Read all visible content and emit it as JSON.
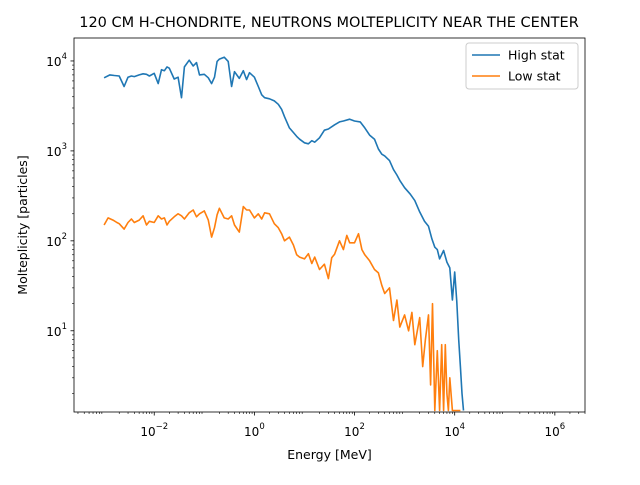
{
  "chart_data": {
    "type": "line",
    "title": "120 CM H-CHONDRITE, NEUTRONS MOLTEPLICITY NEAR THE CENTER",
    "xlabel": "Energy [MeV]",
    "ylabel": "Molteplicity [particles]",
    "xscale": "log",
    "yscale": "log",
    "xlim": [
      0.00025,
      4000000
    ],
    "ylim": [
      1.25,
      18000
    ],
    "x_ticks": [
      {
        "value": 0.01,
        "base": "10",
        "exp": "−2"
      },
      {
        "value": 1,
        "base": "10",
        "exp": "0"
      },
      {
        "value": 100,
        "base": "10",
        "exp": "2"
      },
      {
        "value": 10000,
        "base": "10",
        "exp": "4"
      },
      {
        "value": 1000000,
        "base": "10",
        "exp": "6"
      }
    ],
    "y_ticks": [
      {
        "value": 10,
        "base": "10",
        "exp": "1"
      },
      {
        "value": 100,
        "base": "10",
        "exp": "2"
      },
      {
        "value": 1000,
        "base": "10",
        "exp": "3"
      },
      {
        "value": 10000,
        "base": "10",
        "exp": "4"
      }
    ],
    "grid": false,
    "legend_position": "top-right",
    "series": [
      {
        "name": "High stat",
        "color": "#1f77b4",
        "x": [
          0.001,
          0.0013,
          0.0016,
          0.002,
          0.0025,
          0.003,
          0.0035,
          0.004,
          0.005,
          0.006,
          0.007,
          0.008,
          0.01,
          0.012,
          0.014,
          0.016,
          0.018,
          0.02,
          0.025,
          0.03,
          0.035,
          0.04,
          0.05,
          0.06,
          0.07,
          0.08,
          0.1,
          0.12,
          0.14,
          0.16,
          0.18,
          0.2,
          0.25,
          0.3,
          0.35,
          0.4,
          0.5,
          0.6,
          0.7,
          0.8,
          1.0,
          1.2,
          1.4,
          1.6,
          2.0,
          2.5,
          3,
          3.5,
          4,
          5,
          6,
          7,
          8,
          10,
          12,
          14,
          16,
          20,
          25,
          30,
          40,
          50,
          60,
          80,
          100,
          130,
          160,
          200,
          250,
          300,
          350,
          400,
          500,
          600,
          700,
          800,
          1000,
          1300,
          1600,
          2000,
          2500,
          3000,
          3500,
          4000,
          4500,
          5000,
          6000,
          7000,
          8000,
          9000,
          10000,
          11000,
          12000,
          13000,
          14000,
          15000
        ],
        "y": [
          6500,
          7000,
          6900,
          6800,
          5200,
          6600,
          6800,
          6700,
          7000,
          7200,
          7100,
          6800,
          7300,
          5600,
          8000,
          7800,
          8600,
          8300,
          6300,
          6600,
          3900,
          8600,
          10200,
          8800,
          9600,
          7000,
          7100,
          6500,
          5600,
          6600,
          9900,
          10500,
          11000,
          9900,
          5200,
          7600,
          6400,
          7800,
          6200,
          7400,
          6600,
          5200,
          4200,
          3900,
          3800,
          3600,
          3300,
          2900,
          2400,
          1800,
          1600,
          1450,
          1350,
          1230,
          1200,
          1300,
          1250,
          1400,
          1700,
          1750,
          1950,
          2100,
          2150,
          2250,
          2150,
          2100,
          1800,
          1500,
          1350,
          1050,
          920,
          880,
          780,
          620,
          540,
          470,
          390,
          330,
          280,
          210,
          165,
          145,
          105,
          85,
          80,
          63,
          78,
          58,
          50,
          22,
          45,
          21,
          8,
          4,
          2,
          1.3
        ]
      },
      {
        "name": "Low stat",
        "color": "#ff7f0e",
        "x": [
          0.001,
          0.0012,
          0.0015,
          0.0018,
          0.002,
          0.0025,
          0.003,
          0.0035,
          0.004,
          0.005,
          0.006,
          0.007,
          0.008,
          0.01,
          0.012,
          0.014,
          0.016,
          0.018,
          0.02,
          0.025,
          0.03,
          0.035,
          0.04,
          0.05,
          0.06,
          0.07,
          0.08,
          0.1,
          0.12,
          0.14,
          0.16,
          0.18,
          0.2,
          0.25,
          0.3,
          0.35,
          0.4,
          0.5,
          0.6,
          0.7,
          0.8,
          1.0,
          1.2,
          1.4,
          1.6,
          2.0,
          2.5,
          3,
          3.5,
          4,
          5,
          6,
          7,
          8,
          10,
          12,
          14,
          16,
          20,
          25,
          30,
          35,
          40,
          50,
          60,
          70,
          80,
          100,
          120,
          140,
          160,
          200,
          250,
          300,
          350,
          400,
          500,
          600,
          700,
          800,
          1000,
          1200,
          1400,
          1600,
          2000,
          2300,
          2600,
          3000,
          3300,
          3600,
          4000,
          4500,
          5000,
          5500,
          6000,
          6500,
          7000,
          7500,
          8000,
          9000,
          10000,
          11000,
          12000,
          13000
        ],
        "y": [
          150,
          180,
          170,
          160,
          155,
          135,
          160,
          175,
          160,
          170,
          190,
          150,
          165,
          160,
          190,
          175,
          180,
          150,
          165,
          185,
          200,
          190,
          175,
          205,
          220,
          185,
          200,
          215,
          170,
          110,
          140,
          195,
          230,
          180,
          175,
          190,
          150,
          125,
          240,
          220,
          220,
          180,
          200,
          175,
          205,
          200,
          155,
          140,
          120,
          100,
          110,
          90,
          70,
          66,
          63,
          72,
          56,
          66,
          48,
          55,
          38,
          65,
          71,
          100,
          80,
          115,
          95,
          95,
          120,
          80,
          70,
          60,
          48,
          44,
          32,
          26,
          30,
          13,
          22,
          11,
          15,
          10,
          16,
          7,
          14,
          4,
          8,
          15,
          2.5,
          20,
          1.3,
          6,
          1.3,
          7,
          1.3,
          7,
          2,
          1.3,
          3,
          1.3,
          1.3,
          1.3,
          1.3,
          1.3
        ]
      }
    ]
  }
}
